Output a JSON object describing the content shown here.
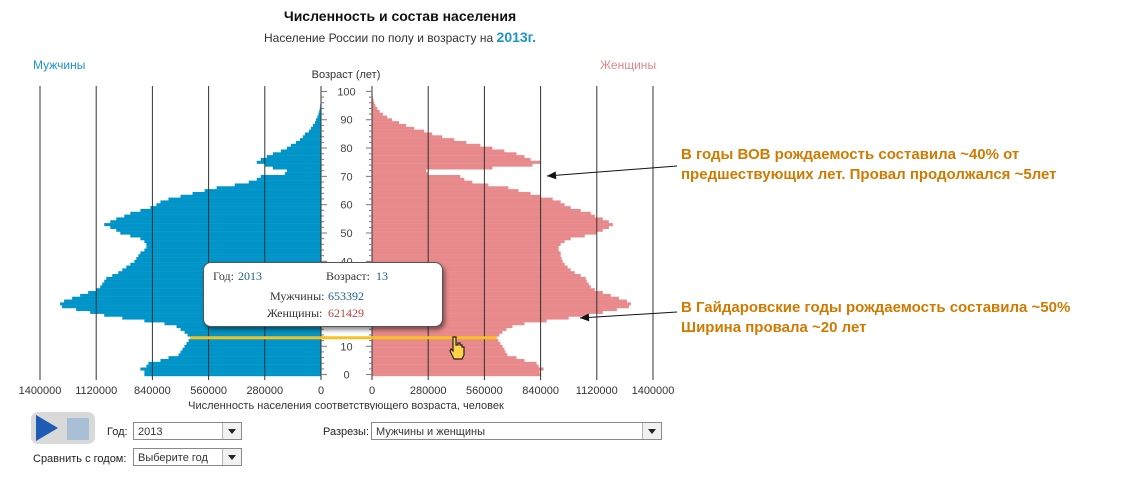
{
  "title": "Численность и состав населения",
  "subtitle": {
    "text": "Население России по полу и возрасту на",
    "year": "2013г."
  },
  "labels": {
    "men": "Мужчины",
    "women": "Женщины"
  },
  "colors": {
    "men": "#0094c8",
    "women": "#e88a8c",
    "highlight": "#f7c221",
    "annotation": "#d07a00",
    "grid": "#333333"
  },
  "annotations": [
    {
      "line1": "В годы ВОВ рождаемость составила ~40% от",
      "line2": "предшествующих лет. Провал продолжался ~5лет"
    },
    {
      "line1": "В Гайдаровские годы рождаемость составила ~50%",
      "line2": "Ширина провала ~20 лет"
    }
  ],
  "tooltip": {
    "year_label": "Год:",
    "year": "2013",
    "age_label": "Возраст:",
    "age": "13",
    "men_label": "Мужчины:",
    "men": "653392",
    "women_label": "Женщины:",
    "women": "621429"
  },
  "controls": {
    "year_label": "Год:",
    "year_value": "2013",
    "sections_label": "Разрезы:",
    "sections_value": "Мужчины и женщины",
    "compare_label": "Сравнить с годом:",
    "compare_value": "Выберите год"
  },
  "chart_data": {
    "type": "bar",
    "title": "Численность и состав населения",
    "subtitle": "Население России по полу и возрасту на 2013г.",
    "ylabel": "Возраст (лет)",
    "xlabel": "Численность населения соответствующего возраста, человек",
    "age_ticks": [
      0,
      10,
      20,
      30,
      40,
      50,
      60,
      70,
      80,
      90,
      100
    ],
    "x_ticks_men": [
      "1400000",
      "1120000",
      "840000",
      "560000",
      "280000",
      "0"
    ],
    "x_ticks_women": [
      "0",
      "280000",
      "560000",
      "840000",
      "1120000",
      "1400000"
    ],
    "xlim": [
      0,
      1400000
    ],
    "ylim": [
      0,
      100
    ],
    "highlight_age": 13,
    "series": [
      {
        "name": "Мужчины",
        "values": [
          880000,
          880000,
          900000,
          870000,
          860000,
          800000,
          760000,
          710000,
          700000,
          690000,
          680000,
          670000,
          660000,
          653392,
          665000,
          680000,
          700000,
          720000,
          780000,
          880000,
          990000,
          1080000,
          1150000,
          1220000,
          1290000,
          1300000,
          1280000,
          1240000,
          1200000,
          1160000,
          1120000,
          1100000,
          1090000,
          1080000,
          1070000,
          1040000,
          1010000,
          990000,
          970000,
          950000,
          930000,
          920000,
          910000,
          900000,
          880000,
          870000,
          870000,
          880000,
          900000,
          950000,
          1000000,
          1020000,
          1050000,
          1080000,
          1050000,
          1020000,
          980000,
          950000,
          900000,
          850000,
          820000,
          800000,
          760000,
          700000,
          640000,
          580000,
          520000,
          430000,
          360000,
          320000,
          300000,
          180000,
          170000,
          240000,
          280000,
          320000,
          300000,
          270000,
          240000,
          200000,
          170000,
          150000,
          125000,
          105000,
          90000,
          80000,
          60000,
          50000,
          40000,
          30000,
          25000,
          18000,
          13000,
          9000,
          6000,
          4000,
          2500,
          1500,
          1000,
          600,
          300
        ]
      },
      {
        "name": "Женщины",
        "values": [
          840000,
          835000,
          855000,
          830000,
          820000,
          760000,
          720000,
          675000,
          665000,
          660000,
          650000,
          640000,
          630000,
          621429,
          635000,
          650000,
          670000,
          700000,
          760000,
          870000,
          980000,
          1080000,
          1150000,
          1220000,
          1280000,
          1290000,
          1270000,
          1230000,
          1190000,
          1150000,
          1110000,
          1090000,
          1080000,
          1070000,
          1065000,
          1040000,
          1010000,
          990000,
          975000,
          960000,
          950000,
          945000,
          940000,
          940000,
          930000,
          930000,
          940000,
          960000,
          990000,
          1060000,
          1120000,
          1150000,
          1180000,
          1200000,
          1180000,
          1150000,
          1110000,
          1090000,
          1040000,
          990000,
          960000,
          940000,
          900000,
          840000,
          790000,
          730000,
          680000,
          580000,
          500000,
          460000,
          440000,
          280000,
          270000,
          600000,
          800000,
          840000,
          790000,
          760000,
          720000,
          660000,
          600000,
          540000,
          470000,
          410000,
          350000,
          300000,
          260000,
          210000,
          170000,
          135000,
          100000,
          75000,
          54000,
          38000,
          26000,
          17000,
          11000,
          7000,
          4000,
          2300,
          1200
        ]
      }
    ]
  }
}
